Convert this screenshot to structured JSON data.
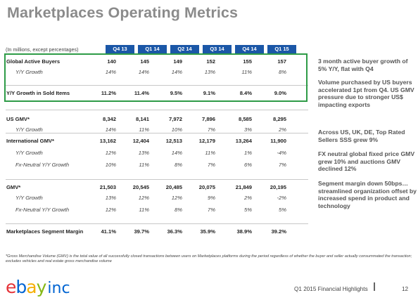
{
  "title": "Marketplaces Operating Metrics",
  "units_note": "(In millions, except percentages)",
  "columns": [
    "Q4 13",
    "Q1 14",
    "Q2 14",
    "Q3 14",
    "Q4 14",
    "Q1 15"
  ],
  "rows": [
    {
      "label": "Global Active Buyers",
      "style": "bold",
      "values": [
        "140",
        "145",
        "149",
        "152",
        "155",
        "157"
      ]
    },
    {
      "label": "Y/Y Growth",
      "style": "sub",
      "values": [
        "14%",
        "14%",
        "14%",
        "13%",
        "11%",
        "8%"
      ]
    },
    {
      "label": "Y/Y Growth in Sold Items",
      "style": "bold",
      "values": [
        "11.2%",
        "11.4%",
        "9.5%",
        "9.1%",
        "8.4%",
        "9.0%"
      ]
    },
    {
      "label": "US GMV*",
      "style": "bold",
      "values": [
        "8,342",
        "8,141",
        "7,972",
        "7,896",
        "8,585",
        "8,295"
      ]
    },
    {
      "label": "Y/Y Growth",
      "style": "sub",
      "values": [
        "14%",
        "11%",
        "10%",
        "7%",
        "3%",
        "2%"
      ]
    },
    {
      "label": "International GMV*",
      "style": "bold",
      "values": [
        "13,162",
        "12,404",
        "12,513",
        "12,179",
        "13,264",
        "11,900"
      ]
    },
    {
      "label": "Y/Y Growth",
      "style": "sub",
      "values": [
        "12%",
        "13%",
        "14%",
        "11%",
        "1%",
        "-4%"
      ]
    },
    {
      "label": "Fx-Neutral Y/Y Growth",
      "style": "sub",
      "values": [
        "10%",
        "11%",
        "8%",
        "7%",
        "6%",
        "7%"
      ]
    },
    {
      "label": "GMV*",
      "style": "bold",
      "values": [
        "21,503",
        "20,545",
        "20,485",
        "20,075",
        "21,849",
        "20,195"
      ]
    },
    {
      "label": "Y/Y Growth",
      "style": "sub",
      "values": [
        "13%",
        "12%",
        "12%",
        "9%",
        "2%",
        "-2%"
      ]
    },
    {
      "label": "Fx-Neutral Y/Y Growth",
      "style": "sub",
      "values": [
        "12%",
        "11%",
        "8%",
        "7%",
        "5%",
        "5%"
      ]
    },
    {
      "label": "Marketplaces Segment Margin",
      "style": "bold",
      "values": [
        "41.1%",
        "39.7%",
        "36.3%",
        "35.9%",
        "38.9%",
        "39.2%"
      ]
    }
  ],
  "commentary": [
    "3 month active buyer growth of 5% Y/Y, flat with Q4",
    "Volume purchased by US buyers accelerated 1pt from Q4.  US GMV pressure due to stronger US$ impacting exports",
    "Across US, UK, DE, Top Rated Sellers SSS grew 9%",
    "FX neutral global fixed price GMV grew 10% and auctions GMV declined 12%",
    "Segment margin down 50bps… streamlined organization offset by increased spend in product and technology"
  ],
  "footnote": "*Gross Merchandise Volume (GMV) is the total value of all successfully closed transactions between users on Marketplaces platforms during the period regardless of whether the buyer and seller actually consummated the transaction; excludes vehicles and real estate gross merchandise volume",
  "logo": {
    "e": "e",
    "b": "b",
    "a": "a",
    "y": "y",
    "inc": "inc"
  },
  "footer": {
    "text": "Q1 2015 Financial Highlights",
    "page": "12"
  },
  "colors": {
    "header_bg": "#1b57a7",
    "highlight_border": "#2e9b47",
    "title": "#8b8b8b"
  }
}
